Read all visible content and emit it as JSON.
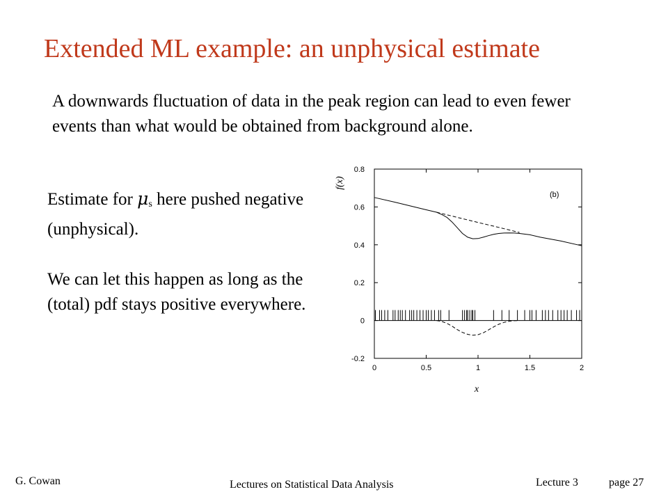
{
  "slide": {
    "title": "Extended ML example:  an unphysical estimate",
    "intro": "A downwards fluctuation of data in the peak region can lead to even fewer events than what would be obtained from background alone.",
    "para1_before": "Estimate for ",
    "mu_symbol": "μ",
    "mu_subscript": "s",
    "para1_after": " here pushed negative (unphysical).",
    "para2": "We can let this happen as long as the (total) pdf stays positive everywhere."
  },
  "footer": {
    "author": "G. Cowan",
    "course": "Lectures on Statistical Data Analysis",
    "lecture": "Lecture 3",
    "page": "page 27"
  },
  "colors": {
    "title": "#c0391b",
    "text": "#000000"
  },
  "chart_data": {
    "type": "line",
    "panel_label": "(b)",
    "xlabel": "x",
    "ylabel": "f(x)",
    "xlim": [
      0,
      2
    ],
    "ylim": [
      -0.2,
      0.8
    ],
    "xticks": [
      0,
      0.5,
      1,
      1.5,
      2
    ],
    "xtick_labels": [
      "0",
      "0.5",
      "1",
      "1.5",
      "2"
    ],
    "yticks": [
      -0.2,
      0,
      0.2,
      0.4,
      0.6,
      0.8
    ],
    "ytick_labels": [
      "-0.2",
      "0",
      "0.2",
      "0.4",
      "0.6",
      "0.8"
    ],
    "series": [
      {
        "style": "solid",
        "x": [
          0,
          0.2,
          0.4,
          0.5,
          0.6,
          0.65,
          0.7,
          0.75,
          0.8,
          0.85,
          0.9,
          0.95,
          1.0,
          1.05,
          1.1,
          1.15,
          1.2,
          1.25,
          1.3,
          1.35,
          1.4,
          1.5,
          1.6,
          1.8,
          2.0
        ],
        "y": [
          0.65,
          0.625,
          0.598,
          0.585,
          0.572,
          0.56,
          0.545,
          0.52,
          0.49,
          0.46,
          0.44,
          0.432,
          0.433,
          0.44,
          0.448,
          0.455,
          0.46,
          0.462,
          0.463,
          0.462,
          0.46,
          0.453,
          0.44,
          0.42,
          0.395
        ]
      },
      {
        "style": "dashed",
        "x": [
          0.6,
          0.8,
          1.0,
          1.2,
          1.4
        ],
        "y": [
          0.572,
          0.545,
          0.518,
          0.492,
          0.465
        ]
      },
      {
        "style": "dashed",
        "x": [
          0.6,
          0.65,
          0.7,
          0.75,
          0.8,
          0.85,
          0.9,
          0.95,
          1.0,
          1.05,
          1.1,
          1.15,
          1.2,
          1.25,
          1.3,
          1.35,
          1.4
        ],
        "y": [
          0,
          -0.005,
          -0.015,
          -0.03,
          -0.048,
          -0.063,
          -0.073,
          -0.078,
          -0.075,
          -0.065,
          -0.05,
          -0.034,
          -0.02,
          -0.01,
          -0.004,
          -0.001,
          0
        ]
      }
    ],
    "events_x": [
      0.01,
      0.05,
      0.07,
      0.1,
      0.13,
      0.18,
      0.2,
      0.23,
      0.25,
      0.27,
      0.3,
      0.34,
      0.36,
      0.38,
      0.41,
      0.44,
      0.47,
      0.5,
      0.52,
      0.55,
      0.58,
      0.62,
      0.64,
      0.72,
      0.85,
      0.87,
      0.89,
      0.9,
      0.92,
      0.94,
      0.95,
      0.97,
      1.15,
      1.23,
      1.3,
      1.38,
      1.45,
      1.5,
      1.52,
      1.56,
      1.62,
      1.65,
      1.68,
      1.72,
      1.77,
      1.8,
      1.83,
      1.86,
      1.9,
      1.95,
      1.98
    ]
  }
}
